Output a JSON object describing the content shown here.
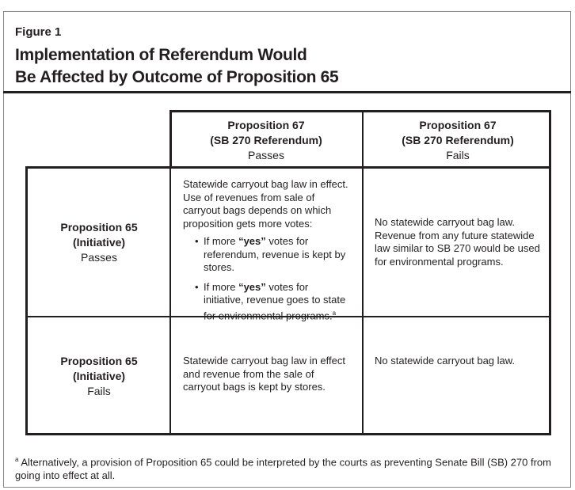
{
  "header": {
    "figure_label": "Figure 1",
    "title_lines": [
      "Implementation of Referendum Would",
      "Be Affected by Outcome of Proposition 65"
    ]
  },
  "table": {
    "column_headers": [
      {
        "title": "Proposition 67",
        "subtitle": "(SB 270 Referendum)",
        "status": "Passes"
      },
      {
        "title": "Proposition 67",
        "subtitle": "(SB 270 Referendum)",
        "status": "Fails"
      }
    ],
    "rows": [
      {
        "header": {
          "title": "Proposition 65",
          "subtitle": "(Initiative)",
          "status": "Passes"
        },
        "cells": [
          {
            "paragraphs": [
              [
                "Statewide carryout bag law in effect. Use of revenues from sale of carryout bags depends on which proposition gets more votes:"
              ]
            ],
            "bullets": [
              [
                "If more ",
                {
                  "text": "“yes”",
                  "bold": true
                },
                " votes for referendum, revenue is kept by stores."
              ],
              [
                "If more ",
                {
                  "text": "“yes”",
                  "bold": true
                },
                " votes for initiative, revenue goes to state for environmental programs.",
                {
                  "text": "a",
                  "superscript": true
                }
              ]
            ]
          },
          {
            "paragraphs": [
              [
                "No statewide carryout bag law. Revenue from any future statewide law similar to SB 270 would be used for environmental programs."
              ]
            ]
          }
        ]
      },
      {
        "header": {
          "title": "Proposition 65",
          "subtitle": "(Initiative)",
          "status": "Fails"
        },
        "cells": [
          {
            "paragraphs": [
              [
                "Statewide carryout bag law in effect and revenue from the sale of carryout bags is kept by stores."
              ]
            ]
          },
          {
            "paragraphs": [
              [
                "No statewide carryout bag law."
              ]
            ]
          }
        ]
      }
    ]
  },
  "footnote": {
    "marker": "a",
    "text": "Alternatively, a provision of Proposition 65 could be interpreted by the courts as preventing Senate Bill (SB) 270 from going into effect at all."
  }
}
